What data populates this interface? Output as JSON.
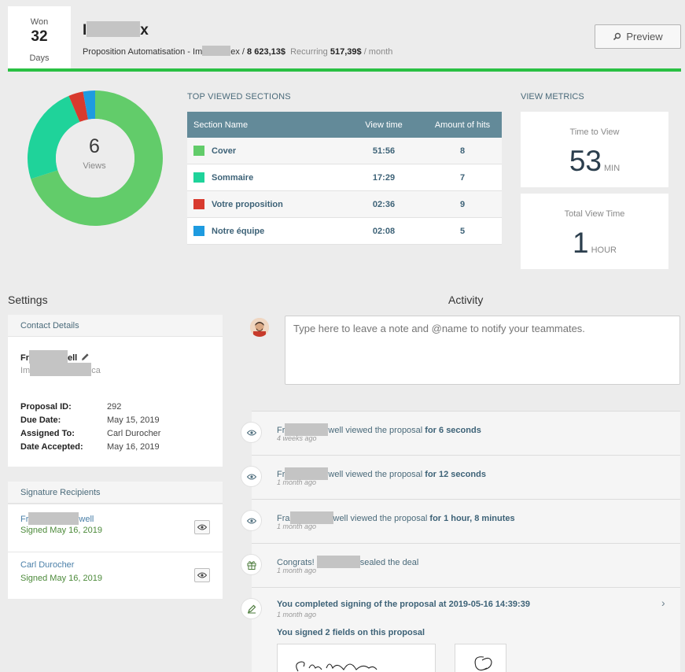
{
  "header": {
    "status_label": "Won",
    "days_count": "32",
    "days_label": "Days",
    "client_prefix": "I",
    "client_suffix": "x",
    "proposal_title": "Proposition Automatisation - Im",
    "proposal_title_suffix": "ex /",
    "amount": "8 623,13$",
    "recurring_label": "Recurring",
    "recurring_amount": "517,39$",
    "recurring_period": "/ month",
    "preview_label": "Preview"
  },
  "donut": {
    "views": "6",
    "views_label": "Views"
  },
  "sections": {
    "title": "TOP VIEWED SECTIONS",
    "columns": [
      "Section Name",
      "View time",
      "Amount of hits"
    ],
    "rows": [
      {
        "name": "Cover",
        "time": "51:56",
        "hits": "8",
        "color": "#62cc6a"
      },
      {
        "name": "Sommaire",
        "time": "17:29",
        "hits": "7",
        "color": "#1fd39a"
      },
      {
        "name": "Votre proposition",
        "time": "02:36",
        "hits": "9",
        "color": "#d83a2e"
      },
      {
        "name": "Notre équipe",
        "time": "02:08",
        "hits": "5",
        "color": "#1e9be0"
      }
    ]
  },
  "metrics": {
    "title": "VIEW METRICS",
    "time_to_view_label": "Time to View",
    "time_to_view_value": "53",
    "time_to_view_unit": "MIN",
    "total_view_label": "Total View Time",
    "total_view_value": "1",
    "total_view_unit": "HOUR"
  },
  "settings": {
    "title": "Settings",
    "contact_header": "Contact Details",
    "contact_name_prefix": "Fr",
    "contact_name_suffix": "ell",
    "contact_company_prefix": "Im",
    "contact_company_suffix": "ca",
    "fields": [
      {
        "label": "Proposal ID:",
        "value": "292"
      },
      {
        "label": "Due Date:",
        "value": "May 15, 2019"
      },
      {
        "label": "Assigned To:",
        "value": "Carl Durocher"
      },
      {
        "label": "Date Accepted:",
        "value": "May 16, 2019"
      }
    ],
    "signature_header": "Signature Recipients",
    "recipients": [
      {
        "name_prefix": "Fr",
        "name_suffix": "well",
        "status": "Signed May 16, 2019"
      },
      {
        "name_prefix": "Carl Durocher",
        "name_suffix": "",
        "status": "Signed May 16, 2019"
      }
    ]
  },
  "activity": {
    "title": "Activity",
    "note_placeholder": "Type here to leave a note and @name to notify your teammates.",
    "events": [
      {
        "prefix": "Fr",
        "suffix": "well",
        "action": " viewed the proposal ",
        "detail": "for 6 seconds",
        "time": "4 weeks ago"
      },
      {
        "prefix": "Fr",
        "suffix": "well",
        "action": " viewed the proposal ",
        "detail": "for 12 seconds",
        "time": "1 month ago"
      },
      {
        "prefix": "Fra",
        "suffix": "well",
        "action": " viewed the proposal ",
        "detail": "for 1 hour, 8 minutes",
        "time": "1 month ago"
      },
      {
        "prefix": "Congrats! ",
        "suffix": "sealed the deal",
        "action": "",
        "detail": "",
        "time": "1 month ago"
      }
    ],
    "signing_event": "You completed signing of the proposal at 2019-05-16 14:39:39",
    "signing_time": "1 month ago",
    "signed_fields": "You signed 2 fields on this proposal"
  },
  "colors": {
    "accent_green": "#2ac043",
    "table_header": "#638a99"
  }
}
